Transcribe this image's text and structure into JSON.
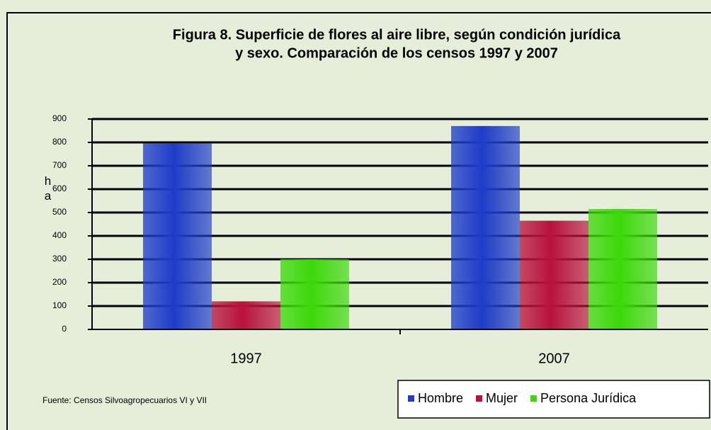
{
  "chart_data": {
    "type": "bar",
    "title": [
      "Figura 8. Superficie de flores al aire libre, según condición jurídica",
      "y sexo. Comparación de los censos 1997 y 2007"
    ],
    "y_label": "ha",
    "source": "Fuente: Censos Silvoagropecuarios VI y VII",
    "categories": [
      "1997",
      "2007"
    ],
    "series": [
      {
        "name": "Hombre",
        "color": "#1e3cc8",
        "values": [
          795,
          870
        ]
      },
      {
        "name": "Mujer",
        "color": "#b8123c",
        "values": [
          120,
          465
        ]
      },
      {
        "name": "Persona Jurídica",
        "color": "#3cd80a",
        "values": [
          300,
          515
        ]
      }
    ],
    "ylim": [
      0,
      900
    ],
    "yticks": [
      0,
      100,
      200,
      300,
      400,
      500,
      600,
      700,
      800,
      900
    ],
    "grid": true
  }
}
